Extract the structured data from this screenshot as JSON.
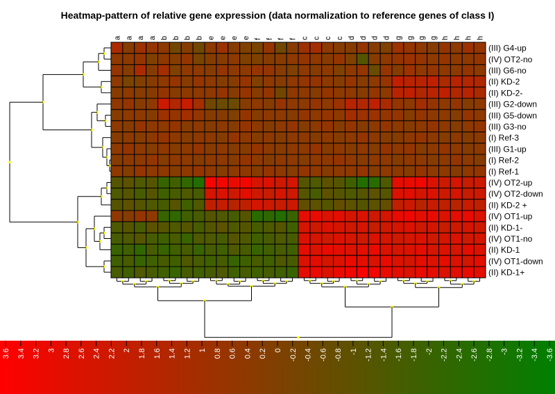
{
  "chart_data": {
    "type": "heatmap",
    "title": "Heatmap-pattern of relative gene expression (data normalization to reference genes of class I)",
    "columns": [
      "a",
      "a",
      "a",
      "a",
      "b",
      "b",
      "b",
      "b",
      "e",
      "e",
      "e",
      "e",
      "f",
      "f",
      "f",
      "f",
      "c",
      "c",
      "c",
      "c",
      "d",
      "d",
      "d",
      "d",
      "g",
      "g",
      "g",
      "g",
      "h",
      "h",
      "h",
      "h"
    ],
    "rows": [
      "(III) G4-up",
      "(IV) OT2-no",
      "(III) G6-no",
      "(II) KD-2",
      "(II) KD-2-",
      "(III) G2-down",
      "(III) G5-down",
      "(III) G3-no",
      "(I) Ref-3",
      "(III) G1-up",
      "(I) Ref-2",
      "(I) Ref-1",
      "(IV) OT2-up",
      "(IV) OT2-down",
      "(II) KD-2 +",
      "(IV) OT1-up",
      "(II) KD-1-",
      "(IV) OT1-no",
      "(II) KD-1",
      "(IV) OT1-down",
      "(II) KD-1+"
    ],
    "values": [
      [
        1.2,
        0.2,
        0.8,
        0.6,
        0.4,
        -0.4,
        0.2,
        -0.4,
        0.4,
        0.8,
        0.2,
        0.0,
        -0.2,
        0.6,
        -0.4,
        0.2,
        0.8,
        1.0,
        0.4,
        0.2,
        0.2,
        0.6,
        0.2,
        0.0,
        0.8,
        0.6,
        0.4,
        0.2,
        0.6,
        0.4,
        0.8,
        0.6
      ],
      [
        0.4,
        0.4,
        0.6,
        0.0,
        0.4,
        0.2,
        0.6,
        -0.2,
        0.2,
        0.2,
        0.4,
        0.0,
        0.0,
        0.2,
        0.2,
        0.4,
        0.6,
        0.4,
        0.2,
        0.6,
        0.0,
        -1.2,
        0.2,
        0.4,
        0.6,
        0.8,
        0.6,
        0.4,
        0.6,
        0.4,
        0.4,
        0.6
      ],
      [
        0.6,
        0.2,
        1.2,
        0.2,
        1.0,
        0.0,
        0.4,
        0.4,
        0.2,
        0.6,
        0.4,
        0.4,
        0.6,
        0.6,
        0.2,
        0.0,
        0.4,
        0.2,
        0.4,
        0.0,
        0.4,
        0.6,
        -0.6,
        0.6,
        0.2,
        0.8,
        0.4,
        0.6,
        0.4,
        0.4,
        0.6,
        0.4
      ],
      [
        0.4,
        -0.2,
        0.0,
        0.2,
        0.4,
        0.6,
        0.2,
        0.6,
        0.4,
        0.2,
        0.2,
        0.6,
        0.0,
        0.4,
        0.2,
        0.4,
        0.6,
        0.6,
        0.4,
        0.2,
        0.6,
        0.2,
        0.4,
        0.6,
        1.8,
        1.6,
        1.6,
        1.8,
        1.2,
        1.6,
        1.4,
        1.4
      ],
      [
        0.2,
        0.4,
        0.2,
        0.2,
        0.6,
        0.2,
        0.4,
        0.4,
        0.4,
        0.6,
        0.2,
        0.6,
        0.2,
        0.6,
        -0.4,
        0.4,
        0.4,
        0.2,
        0.6,
        0.4,
        0.4,
        0.2,
        0.6,
        0.4,
        1.6,
        1.8,
        1.4,
        1.6,
        1.8,
        1.4,
        1.6,
        1.2
      ],
      [
        0.4,
        0.6,
        0.2,
        0.4,
        2.2,
        1.4,
        2.0,
        1.0,
        -0.4,
        -0.6,
        -0.6,
        0.2,
        0.4,
        0.2,
        0.6,
        0.4,
        0.4,
        0.6,
        0.4,
        0.8,
        1.6,
        1.4,
        1.8,
        1.2,
        0.6,
        0.4,
        1.0,
        0.6,
        0.4,
        0.6,
        0.2,
        0.4
      ],
      [
        0.2,
        0.4,
        0.4,
        0.2,
        0.8,
        0.6,
        1.0,
        0.6,
        0.2,
        0.2,
        0.0,
        0.6,
        0.2,
        0.4,
        0.4,
        0.2,
        0.6,
        0.4,
        0.6,
        0.4,
        1.0,
        0.8,
        0.8,
        0.6,
        0.6,
        0.2,
        0.6,
        0.4,
        0.4,
        0.2,
        0.6,
        0.4
      ],
      [
        0.4,
        0.2,
        0.6,
        0.4,
        0.4,
        0.6,
        0.2,
        0.4,
        0.2,
        0.4,
        0.2,
        0.6,
        0.4,
        0.2,
        0.4,
        0.6,
        0.2,
        0.4,
        0.6,
        0.2,
        0.6,
        0.2,
        0.4,
        0.6,
        0.4,
        0.2,
        0.4,
        0.6,
        0.4,
        0.2,
        0.4,
        0.6
      ],
      [
        0.2,
        0.4,
        0.2,
        0.4,
        0.6,
        0.4,
        0.2,
        0.4,
        0.4,
        0.2,
        0.6,
        0.4,
        0.2,
        0.4,
        0.2,
        0.4,
        0.4,
        0.2,
        0.4,
        0.2,
        0.4,
        0.6,
        0.4,
        0.2,
        0.2,
        0.4,
        0.6,
        0.4,
        0.2,
        0.4,
        0.2,
        0.4
      ],
      [
        0.4,
        0.6,
        0.4,
        0.2,
        0.4,
        0.2,
        0.4,
        0.6,
        0.2,
        0.4,
        0.2,
        0.2,
        0.6,
        0.4,
        0.2,
        0.4,
        0.4,
        0.6,
        0.2,
        0.4,
        0.2,
        0.4,
        0.2,
        0.6,
        0.4,
        0.6,
        0.2,
        0.4,
        0.6,
        0.4,
        0.2,
        0.4
      ],
      [
        0.2,
        0.4,
        0.4,
        0.6,
        0.2,
        0.4,
        0.4,
        0.2,
        0.4,
        0.4,
        0.2,
        0.6,
        0.4,
        0.2,
        0.4,
        0.4,
        0.2,
        0.4,
        0.4,
        0.6,
        0.4,
        0.2,
        0.4,
        0.4,
        0.2,
        0.4,
        0.4,
        0.2,
        0.4,
        0.6,
        0.4,
        0.2
      ],
      [
        0.4,
        0.2,
        0.6,
        0.4,
        0.4,
        0.2,
        0.4,
        0.6,
        0.4,
        0.2,
        0.4,
        0.4,
        0.2,
        0.6,
        0.4,
        0.2,
        0.6,
        0.4,
        0.2,
        0.4,
        0.4,
        0.6,
        0.2,
        0.4,
        0.4,
        0.2,
        0.6,
        0.4,
        0.4,
        0.2,
        0.4,
        0.6
      ],
      [
        -1.2,
        -1.0,
        -1.4,
        -1.2,
        -2.0,
        -1.8,
        -2.2,
        -2.6,
        3.4,
        3.2,
        3.0,
        3.2,
        2.4,
        2.6,
        2.2,
        2.4,
        -1.2,
        -1.4,
        -1.0,
        -1.2,
        -1.8,
        -2.6,
        -2.4,
        -1.4,
        2.8,
        3.0,
        3.2,
        2.6,
        2.2,
        2.4,
        2.0,
        2.2
      ],
      [
        -1.4,
        -1.2,
        -1.6,
        -1.2,
        -1.8,
        -1.6,
        -1.4,
        -1.6,
        2.4,
        2.6,
        2.2,
        2.8,
        2.2,
        2.0,
        2.4,
        2.2,
        -1.2,
        -1.6,
        -1.0,
        -1.2,
        -1.4,
        -1.2,
        -1.0,
        -1.2,
        2.6,
        2.8,
        2.4,
        2.6,
        2.2,
        2.4,
        2.0,
        2.2
      ],
      [
        -1.2,
        -1.0,
        -1.2,
        -1.4,
        -1.6,
        -1.2,
        -1.8,
        -1.4,
        1.8,
        2.0,
        1.6,
        1.8,
        2.4,
        2.2,
        2.0,
        2.2,
        -0.8,
        -1.0,
        -1.2,
        -0.8,
        -1.0,
        -1.2,
        -1.0,
        -0.8,
        1.8,
        2.2,
        1.6,
        2.0,
        1.8,
        1.6,
        2.0,
        1.8
      ],
      [
        0.4,
        0.2,
        0.6,
        0.4,
        -2.0,
        -2.2,
        -1.8,
        -1.6,
        -1.2,
        -1.4,
        -1.6,
        -1.2,
        -2.4,
        -2.2,
        -2.6,
        -2.0,
        2.8,
        3.0,
        2.6,
        2.8,
        2.4,
        2.6,
        2.2,
        2.4,
        3.0,
        3.2,
        2.8,
        3.0,
        2.6,
        2.8,
        3.0,
        2.6
      ],
      [
        -1.4,
        -1.2,
        -1.6,
        -1.0,
        -1.2,
        -1.4,
        -1.2,
        -1.6,
        -1.2,
        -1.0,
        -1.4,
        -1.2,
        -1.6,
        -1.4,
        -1.2,
        -1.8,
        2.4,
        2.2,
        2.6,
        2.4,
        2.2,
        2.4,
        2.0,
        2.2,
        2.4,
        2.6,
        2.2,
        2.4,
        2.0,
        2.2,
        2.4,
        2.2
      ],
      [
        -1.6,
        -1.4,
        -1.2,
        -1.6,
        -1.8,
        -1.6,
        -2.0,
        -1.4,
        -1.4,
        -1.6,
        -1.2,
        -1.4,
        -1.8,
        -1.6,
        -1.4,
        -1.6,
        2.6,
        2.4,
        2.2,
        2.6,
        2.4,
        2.2,
        2.6,
        2.4,
        2.2,
        2.4,
        2.6,
        2.2,
        2.4,
        2.6,
        2.2,
        2.4
      ],
      [
        -2.0,
        -1.8,
        -2.2,
        -1.6,
        -2.0,
        -1.8,
        -1.6,
        -2.0,
        -1.6,
        -1.8,
        -1.4,
        -1.6,
        -2.0,
        -1.8,
        -1.6,
        -1.8,
        2.8,
        2.6,
        3.0,
        2.8,
        2.6,
        2.8,
        3.0,
        2.6,
        2.4,
        2.6,
        2.8,
        2.4,
        2.6,
        2.4,
        2.8,
        2.6
      ],
      [
        -1.8,
        -1.6,
        -2.0,
        -1.8,
        -1.6,
        -1.8,
        -1.4,
        -1.6,
        -1.8,
        -1.6,
        -2.0,
        -1.8,
        -1.6,
        -1.8,
        -1.4,
        -1.6,
        2.6,
        2.8,
        2.4,
        2.6,
        3.0,
        2.8,
        2.6,
        3.0,
        2.6,
        2.4,
        2.8,
        2.6,
        2.8,
        2.6,
        2.4,
        2.8
      ],
      [
        -1.6,
        -1.8,
        -1.4,
        -1.6,
        -1.8,
        -2.0,
        -1.6,
        -1.8,
        -1.6,
        -1.4,
        -1.8,
        -1.6,
        -1.8,
        -1.6,
        -1.8,
        -2.0,
        2.8,
        3.0,
        2.6,
        3.0,
        3.2,
        3.4,
        3.2,
        3.0,
        2.8,
        2.6,
        3.0,
        2.8,
        2.6,
        2.8,
        3.0,
        2.8
      ]
    ],
    "colorbar": {
      "ticks": [
        "3.6",
        "3.4",
        "3.2",
        "3",
        "2.8",
        "2.6",
        "2.4",
        "2.2",
        "2",
        "1.8",
        "1.6",
        "1.4",
        "1.2",
        "1",
        "0.8",
        "0.6",
        "0.4",
        "0.2",
        "0",
        "-0.2",
        "-0.4",
        "-0.6",
        "-0.8",
        "-1",
        "-1.2",
        "-1.4",
        "-1.6",
        "-1.8",
        "-2",
        "-2.2",
        "-2.4",
        "-2.6",
        "-2.8",
        "-3",
        "-3.2",
        "-3.4",
        "-3.6"
      ],
      "range": [
        3.6,
        -3.6
      ],
      "high_color": "#ff0000",
      "low_color": "#008000"
    }
  }
}
